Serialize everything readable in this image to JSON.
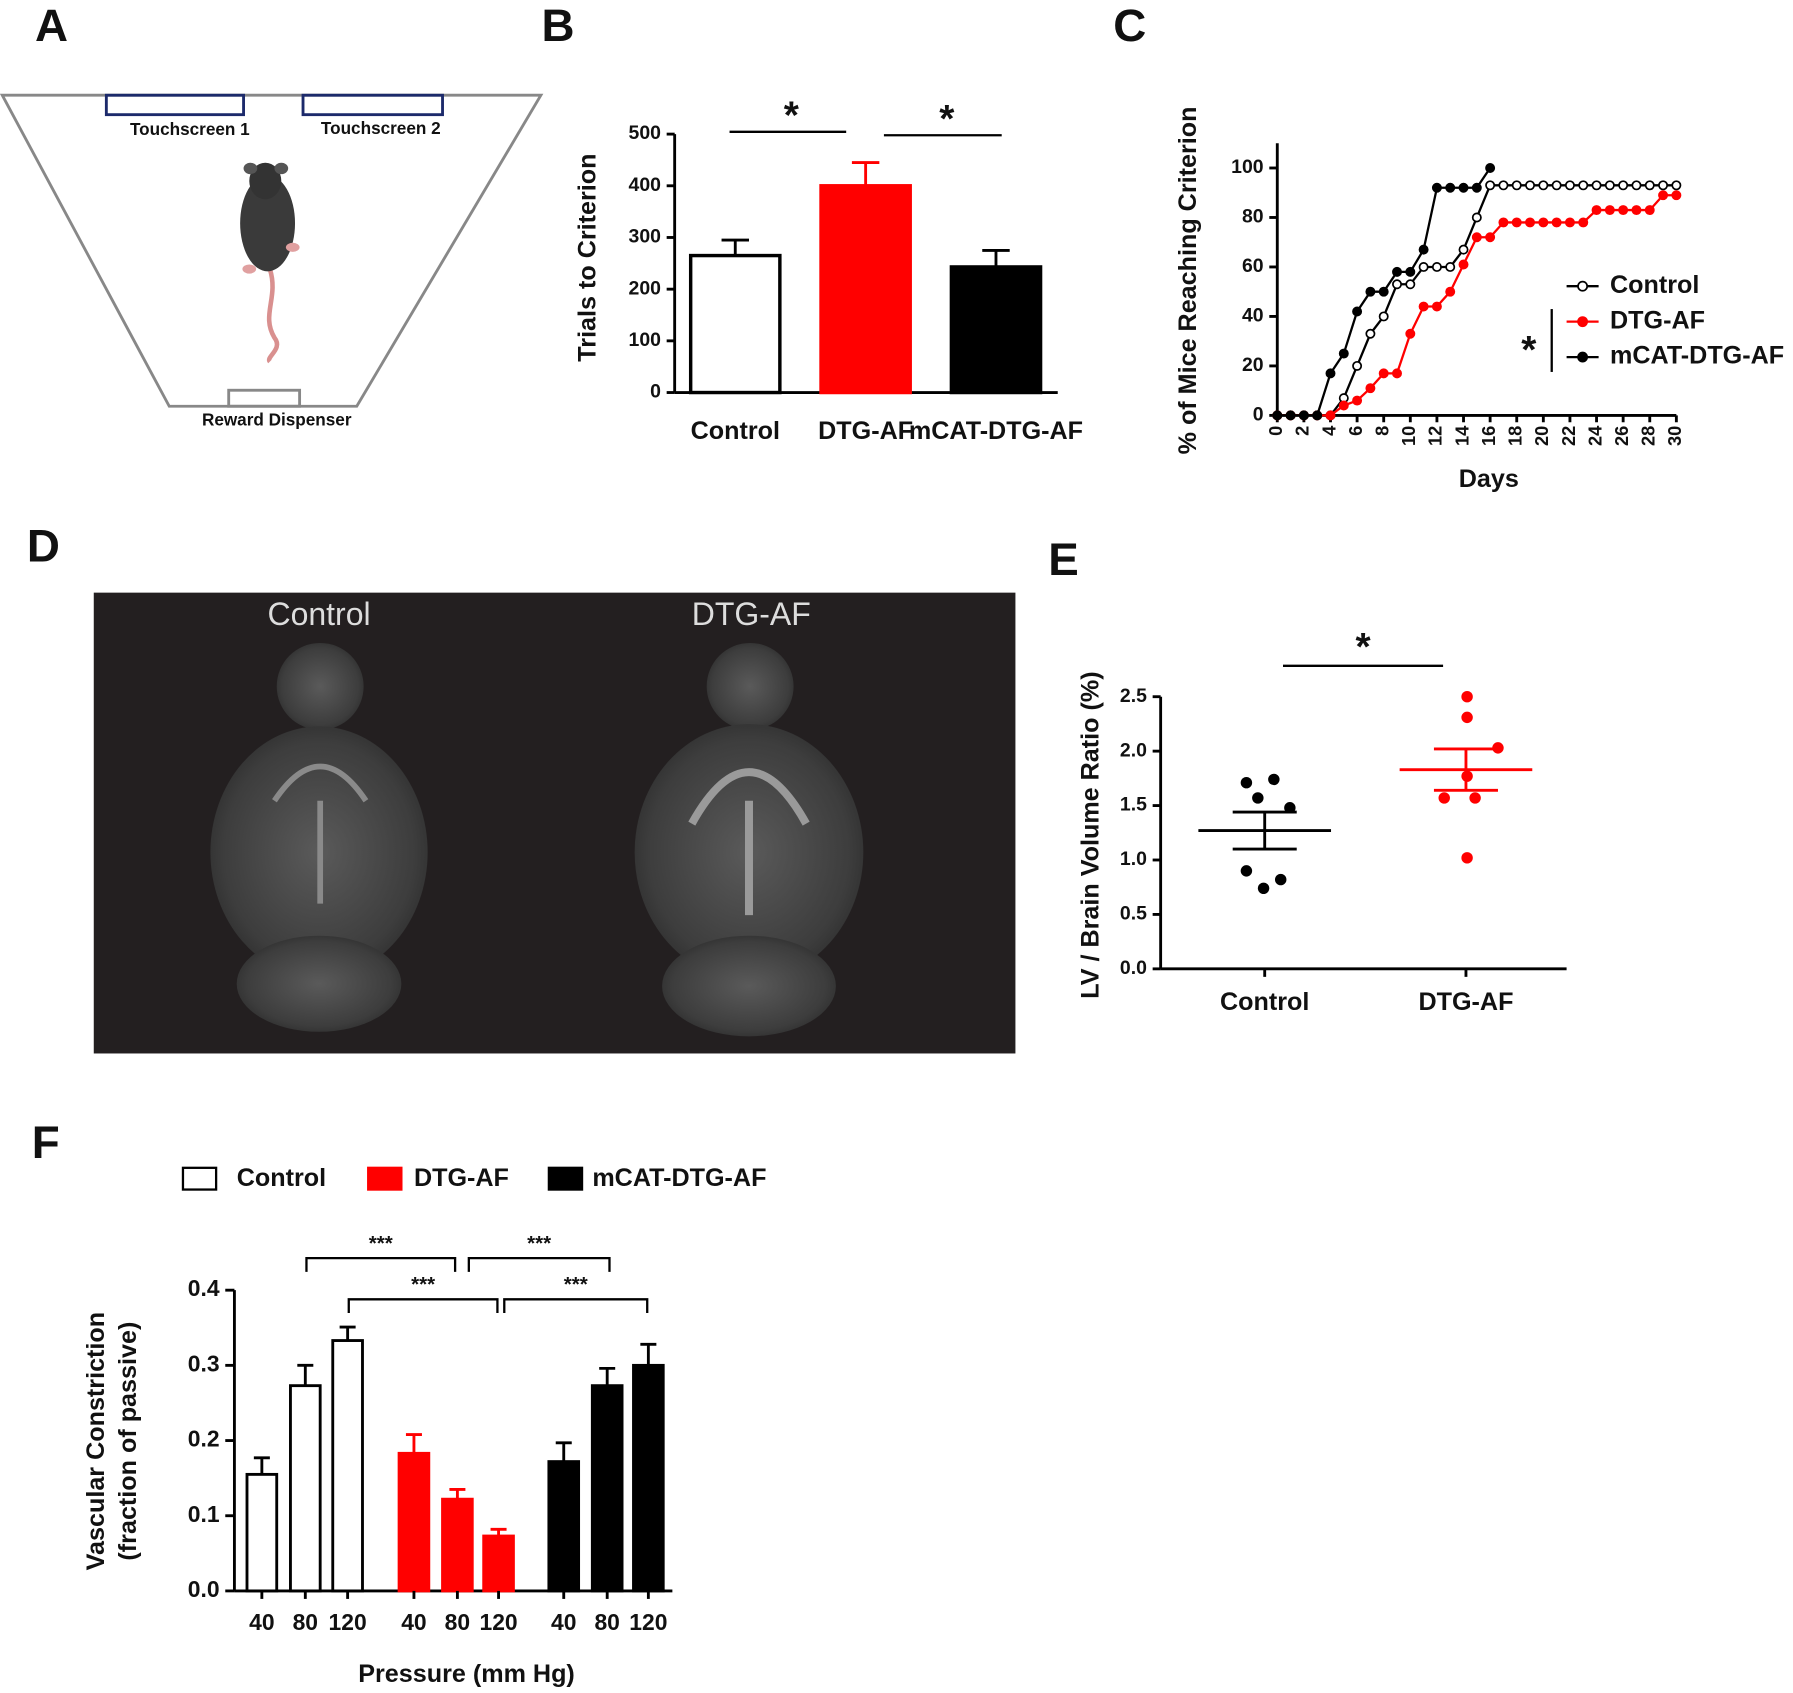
{
  "panel_labels": [
    "A",
    "B",
    "C",
    "D",
    "E",
    "F"
  ],
  "diagram": {
    "labels": [
      "Touchscreen 1",
      "Touchscreen 2",
      "Reward Dispenser"
    ]
  },
  "image": {
    "labels": [
      "Control",
      "DTG-AF"
    ]
  },
  "chart_data": [
    {
      "type": "bar",
      "ylabel": "Trials to Criterion",
      "categories": [
        "Control",
        "DTG-AF",
        "mCAT-DTG-AF"
      ],
      "values": [
        265,
        400,
        243
      ],
      "errors": [
        30,
        45,
        32
      ],
      "colors": [
        "#ffffff",
        "#ff0000",
        "#000000"
      ],
      "ylim": [
        0,
        500
      ],
      "yticks": [
        0,
        100,
        200,
        300,
        400,
        500
      ],
      "annotations": [
        "*",
        "*"
      ]
    },
    {
      "type": "line",
      "ylabel": "% of Mice Reaching Criterion",
      "xlabel": "Days",
      "x": [
        0,
        1,
        2,
        3,
        4,
        5,
        6,
        7,
        8,
        9,
        10,
        11,
        12,
        13,
        14,
        15,
        16,
        17,
        18,
        19,
        20,
        21,
        22,
        23,
        24,
        25,
        26,
        27,
        28,
        29,
        30
      ],
      "xlim": [
        0,
        30
      ],
      "xticks": [
        0,
        2,
        4,
        6,
        8,
        10,
        12,
        14,
        16,
        18,
        20,
        22,
        24,
        26,
        28,
        30
      ],
      "ylim": [
        0,
        110
      ],
      "yticks": [
        0,
        20,
        40,
        60,
        80,
        100
      ],
      "series": [
        {
          "name": "Control",
          "color": "#000000",
          "marker_fill": "#ffffff",
          "values": [
            0,
            0,
            0,
            0,
            0,
            7,
            20,
            33,
            40,
            53,
            53,
            60,
            60,
            60,
            67,
            80,
            93,
            93,
            93,
            93,
            93,
            93,
            93,
            93,
            93,
            93,
            93,
            93,
            93,
            93,
            93
          ]
        },
        {
          "name": "DTG-AF",
          "color": "#ff0000",
          "marker_fill": "#ff0000",
          "values": [
            0,
            0,
            0,
            0,
            0,
            4,
            6,
            11,
            17,
            17,
            33,
            44,
            44,
            50,
            61,
            72,
            72,
            78,
            78,
            78,
            78,
            78,
            78,
            78,
            83,
            83,
            83,
            83,
            83,
            89,
            89
          ]
        },
        {
          "name": "mCAT-DTG-AF",
          "color": "#000000",
          "marker_fill": "#000000",
          "values": [
            0,
            0,
            0,
            0,
            17,
            25,
            42,
            50,
            50,
            58,
            58,
            67,
            92,
            92,
            92,
            92,
            100,
            null,
            null,
            null,
            null,
            null,
            null,
            null,
            null,
            null,
            null,
            null,
            null,
            null,
            null
          ]
        }
      ],
      "annotation": "*"
    },
    {
      "type": "dot",
      "ylabel": "LV / Brain Volume Ratio (%)",
      "categories": [
        "Control",
        "DTG-AF"
      ],
      "groups": [
        {
          "color": "#000000",
          "values": [
            1.71,
            1.74,
            1.57,
            1.48,
            0.9,
            0.82,
            0.74
          ],
          "mean": 1.27,
          "sem": 0.17
        },
        {
          "color": "#ff0000",
          "values": [
            2.5,
            2.31,
            2.03,
            1.77,
            1.57,
            1.57,
            1.02
          ],
          "mean": 1.83,
          "sem": 0.19
        }
      ],
      "ylim": [
        0,
        2.5
      ],
      "yticks": [
        {
          "value": 0,
          "label": "0.0"
        },
        0.5,
        {
          "value": 1,
          "label": "1.0"
        },
        1.5,
        {
          "value": 2,
          "label": "2.0"
        },
        2.5
      ],
      "annotation": "*"
    },
    {
      "type": "grouped_bar",
      "ylabel": [
        "Vascular Constriction",
        "(fraction of passive)"
      ],
      "xlabel": "Pressure (mm Hg)",
      "categories": [
        "40",
        "80",
        "120"
      ],
      "series": [
        {
          "name": "Control",
          "color": "#ffffff",
          "values": [
            0.155,
            0.273,
            0.333
          ],
          "errors": [
            0.022,
            0.027,
            0.018
          ]
        },
        {
          "name": "DTG-AF",
          "color": "#ff0000",
          "values": [
            0.183,
            0.122,
            0.073
          ],
          "errors": [
            0.025,
            0.013,
            0.009
          ]
        },
        {
          "name": "mCAT-DTG-AF",
          "color": "#000000",
          "values": [
            0.172,
            0.273,
            0.3
          ],
          "errors": [
            0.025,
            0.023,
            0.028
          ]
        }
      ],
      "ylim": [
        0,
        0.4
      ],
      "yticks": [
        {
          "value": 0,
          "label": "0.0"
        },
        0.1,
        0.2,
        0.3,
        0.4
      ],
      "annotations": [
        "***",
        "***",
        "***",
        "***"
      ]
    }
  ]
}
